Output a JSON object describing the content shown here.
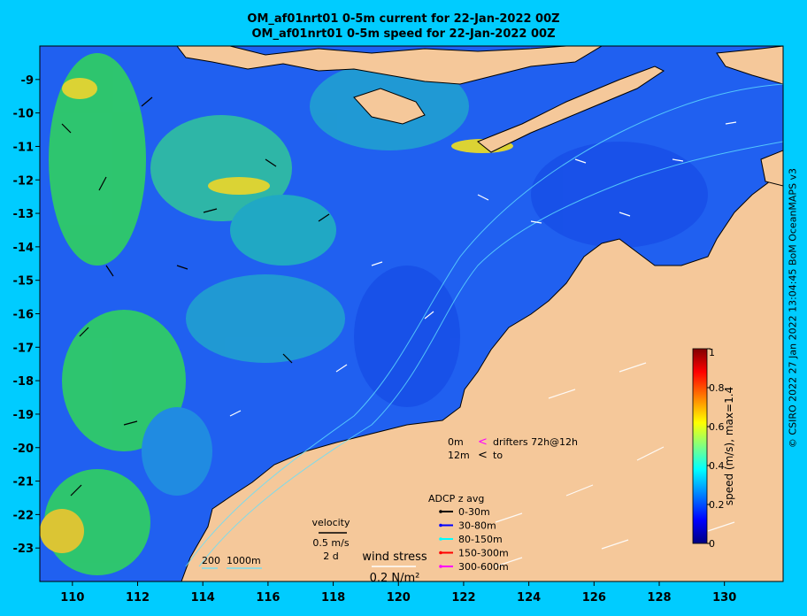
{
  "titles": {
    "line1": "OM_af01nrt01 0-5m current for 22-Jan-2022 00Z",
    "line2": "OM_af01nrt01 0-5m speed for 22-Jan-2022 00Z"
  },
  "axes": {
    "lon_ticks": [
      "110",
      "112",
      "114",
      "116",
      "118",
      "120",
      "122",
      "124",
      "126",
      "128",
      "130"
    ],
    "lat_ticks": [
      "-9",
      "-10",
      "-11",
      "-12",
      "-13",
      "-14",
      "-15",
      "-16",
      "-17",
      "-18",
      "-19",
      "-20",
      "-21",
      "-22",
      "-23"
    ],
    "lon_range": [
      109,
      131.8
    ],
    "lat_range": [
      -8.0,
      -24.0
    ]
  },
  "colorbar": {
    "label": "speed (m/s), max=1.4",
    "ticks": [
      "1",
      "0.8",
      "0.6",
      "0.4",
      "0.2",
      "0"
    ],
    "colors": [
      "#000080",
      "#0000ff",
      "#0080ff",
      "#00ffff",
      "#80ff80",
      "#ffff00",
      "#ff8000",
      "#ff0000",
      "#800000"
    ]
  },
  "legend": {
    "drifters": {
      "row1_depth": "0m",
      "row1_text": "drifters 72h@12h",
      "row2_depth": "12m",
      "row2_text": "to",
      "color": "#ff00ff"
    },
    "adcp": {
      "title": "ADCP z avg",
      "items": [
        {
          "label": "0-30m",
          "color": "#000000"
        },
        {
          "label": "30-80m",
          "color": "#0000ff"
        },
        {
          "label": "80-150m",
          "color": "#00ffff"
        },
        {
          "label": "150-300m",
          "color": "#ff0000"
        },
        {
          "label": "300-600m",
          "color": "#ff00ff"
        }
      ]
    },
    "velocity": {
      "title": "velocity",
      "speed": "0.5 m/s",
      "time": "2 d"
    },
    "wind": {
      "title": "wind stress",
      "value": "0.2 N/m²"
    },
    "isobaths": {
      "label1": "200",
      "label2": "1000m"
    }
  },
  "credit": "© CSIRO 2022  27 Jan 2022 13:04:45 BoM OceanMAPS v3"
}
